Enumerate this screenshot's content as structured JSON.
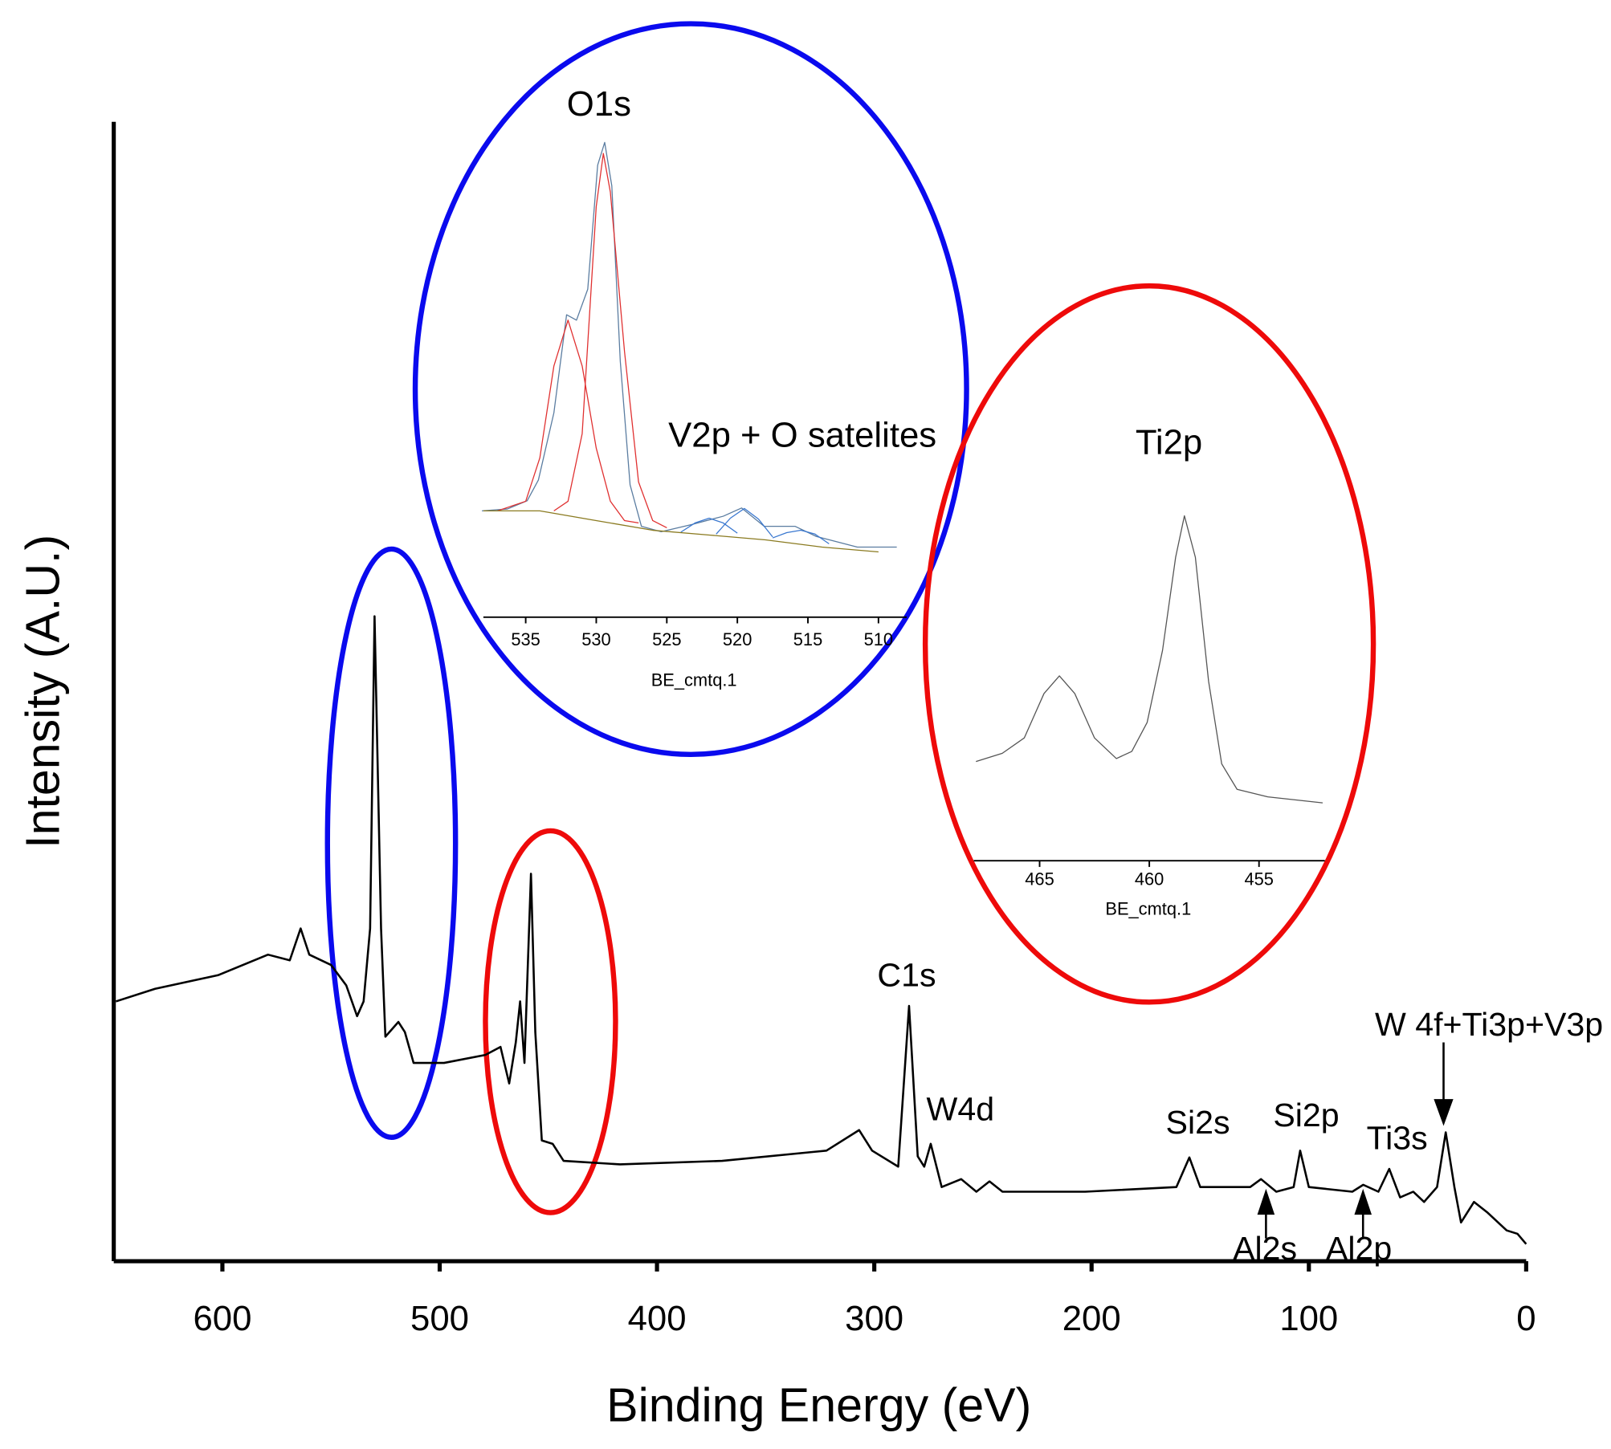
{
  "chart_data": [
    {
      "type": "line",
      "xlabel": "Binding Energy (eV)",
      "ylabel": "Intensity (A.U.)",
      "xlim": [
        650,
        0
      ],
      "ylim": [
        0,
        100
      ],
      "xticks": [
        600,
        500,
        400,
        300,
        200,
        100,
        0
      ],
      "annotations": [
        "C1s",
        "W4d",
        "Si2s",
        "Si2p",
        "Ti3s",
        "W 4f+Ti3p+V3p",
        "Al2s",
        "Al2p"
      ],
      "series": [
        {
          "color": "#000000",
          "x": [
            649,
            631,
            602,
            579,
            569,
            564,
            560,
            550,
            543,
            538,
            535,
            532,
            530,
            527,
            525,
            519,
            516,
            512,
            498,
            479,
            472,
            468,
            465,
            463,
            461,
            458,
            456,
            453,
            448,
            443,
            417,
            370,
            322,
            307,
            301,
            289,
            284,
            280,
            277,
            274,
            269,
            260,
            253,
            247,
            241,
            203,
            161,
            155,
            150,
            127,
            122,
            115,
            107,
            104,
            100,
            80,
            75,
            68,
            63,
            58,
            52,
            47,
            41,
            37,
            33,
            30,
            24,
            18,
            9,
            4,
            0
          ],
          "values": [
            22.8,
            23.9,
            25.1,
            26.9,
            26.4,
            29.2,
            26.9,
            26.0,
            24.2,
            21.5,
            22.8,
            29.2,
            56.6,
            29.2,
            19.7,
            21.0,
            20.1,
            17.4,
            17.4,
            18.1,
            18.8,
            15.6,
            19.2,
            22.8,
            17.4,
            34.0,
            20.1,
            10.6,
            10.3,
            8.8,
            8.5,
            8.8,
            9.7,
            11.5,
            9.7,
            8.3,
            22.4,
            9.2,
            8.3,
            10.3,
            6.5,
            7.2,
            6.1,
            7.0,
            6.1,
            6.1,
            6.5,
            9.1,
            6.5,
            6.5,
            7.2,
            6.1,
            6.5,
            9.7,
            6.5,
            6.1,
            6.7,
            6.1,
            8.1,
            5.6,
            6.1,
            5.2,
            6.5,
            11.3,
            6.5,
            3.4,
            5.2,
            4.3,
            2.7,
            2.4,
            1.5
          ]
        }
      ]
    },
    {
      "type": "line",
      "title": "O1s",
      "xlabel": "BE_cmtq.1",
      "xlim": [
        538,
        508
      ],
      "ylim": [
        0,
        100
      ],
      "xticks": [
        535,
        530,
        525,
        520,
        515,
        510
      ],
      "annotations": [
        "V2p + O satelites"
      ],
      "series": [
        {
          "color": "#5a7ca0",
          "x": [
            538.1,
            536.3,
            534.9,
            534.1,
            533.0,
            532.1,
            531.4,
            530.6,
            529.9,
            529.4,
            528.9,
            528.3,
            527.6,
            526.8,
            525.4,
            523.2,
            521.0,
            519.7,
            518.1,
            515.9,
            514.4,
            511.5,
            508.7
          ],
          "values": [
            22.0,
            22.4,
            24.1,
            28.4,
            42.3,
            62.6,
            61.5,
            67.9,
            93.6,
            98.3,
            89.3,
            53.0,
            27.4,
            18.8,
            17.7,
            19.2,
            20.9,
            22.6,
            18.8,
            18.8,
            16.7,
            14.5,
            14.5
          ]
        },
        {
          "color": "#e03030",
          "x": [
            537,
            535,
            534,
            533,
            532,
            531,
            530,
            529,
            528,
            527
          ],
          "values": [
            22,
            24,
            33,
            52,
            61.5,
            52,
            35,
            24,
            20,
            19.5
          ]
        },
        {
          "color": "#e03030",
          "x": [
            533,
            532,
            531,
            530,
            529.5,
            529,
            528,
            527,
            526,
            525
          ],
          "values": [
            22,
            24,
            38,
            85,
            96,
            88,
            55,
            28,
            20,
            18.5
          ]
        },
        {
          "color": "#3a78d0",
          "x": [
            524,
            523,
            522,
            521,
            520
          ],
          "values": [
            17.6,
            19.5,
            20.5,
            19.5,
            17.4
          ]
        },
        {
          "color": "#3a78d0",
          "x": [
            521.5,
            520.5,
            519.5,
            518.5,
            517.5
          ],
          "values": [
            17.2,
            20.5,
            22.5,
            20.3,
            16.6
          ]
        },
        {
          "color": "#3a78d0",
          "x": [
            517.5,
            516.5,
            515.5,
            514.5,
            513.5
          ],
          "values": [
            16.4,
            17.5,
            18,
            17.2,
            15.2
          ]
        },
        {
          "color": "#8a7a20",
          "x": [
            538,
            534,
            530,
            526,
            522,
            518,
            514,
            510
          ],
          "values": [
            22,
            22,
            20,
            18,
            17,
            16,
            14.5,
            13.5
          ]
        }
      ]
    },
    {
      "type": "line",
      "title": "Ti2p",
      "xlabel": "BE_cmtq.1",
      "xlim": [
        468,
        452
      ],
      "ylim": [
        0,
        100
      ],
      "xticks": [
        465,
        460,
        455
      ],
      "series": [
        {
          "color": "#555555",
          "x": [
            467.9,
            466.7,
            465.7,
            464.8,
            464.1,
            463.4,
            462.5,
            461.5,
            460.8,
            460.1,
            459.4,
            458.8,
            458.4,
            457.9,
            457.3,
            456.7,
            456.0,
            454.6,
            452.1
          ],
          "values": [
            26.4,
            28.6,
            32.7,
            44.5,
            49.2,
            44.5,
            32.7,
            27.2,
            29.1,
            36.8,
            56.0,
            80.8,
            91.8,
            80.8,
            47.8,
            25.8,
            19.0,
            17.0,
            15.4
          ]
        }
      ]
    }
  ]
}
